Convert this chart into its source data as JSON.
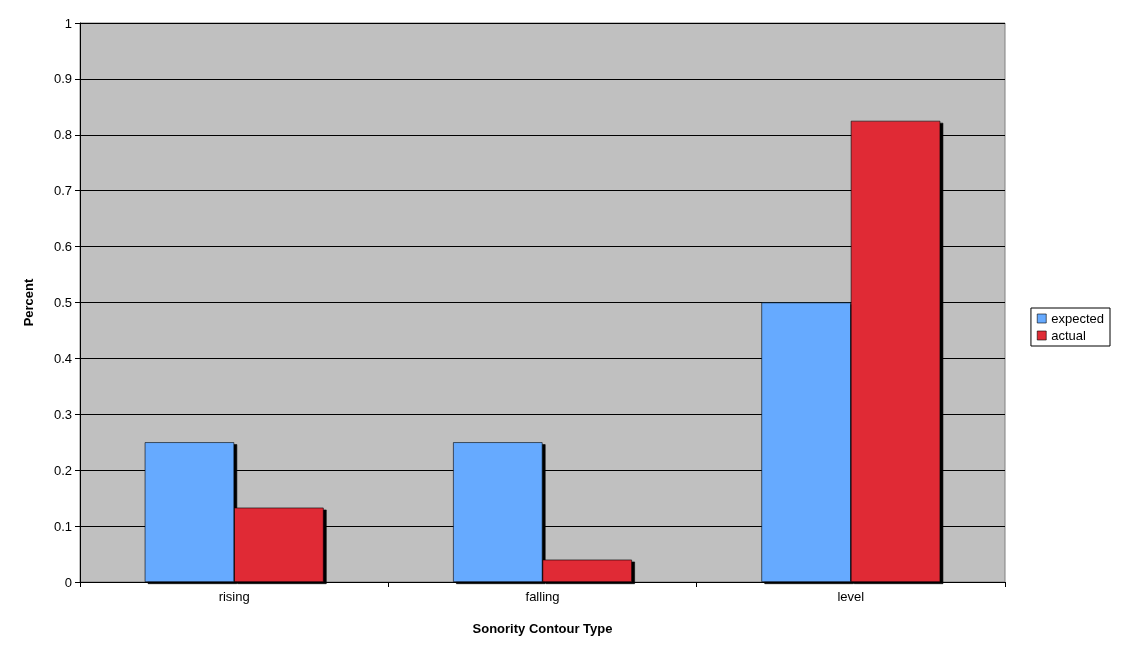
{
  "chart_data": {
    "type": "bar",
    "xlabel": "Sonority Contour Type",
    "ylabel": "Percent",
    "categories": [
      "rising",
      "falling",
      "level"
    ],
    "series": [
      {
        "name": "expected",
        "color": "#66aaff",
        "values": [
          0.25,
          0.25,
          0.5
        ]
      },
      {
        "name": "actual",
        "color": "#e02b35",
        "values": [
          0.133,
          0.04,
          0.825
        ]
      }
    ],
    "ylim": [
      0,
      1
    ],
    "yticks": [
      0,
      0.1,
      0.2,
      0.3,
      0.4,
      0.5,
      0.6,
      0.7,
      0.8,
      0.9,
      1
    ],
    "grid": "y",
    "legend": "right"
  }
}
